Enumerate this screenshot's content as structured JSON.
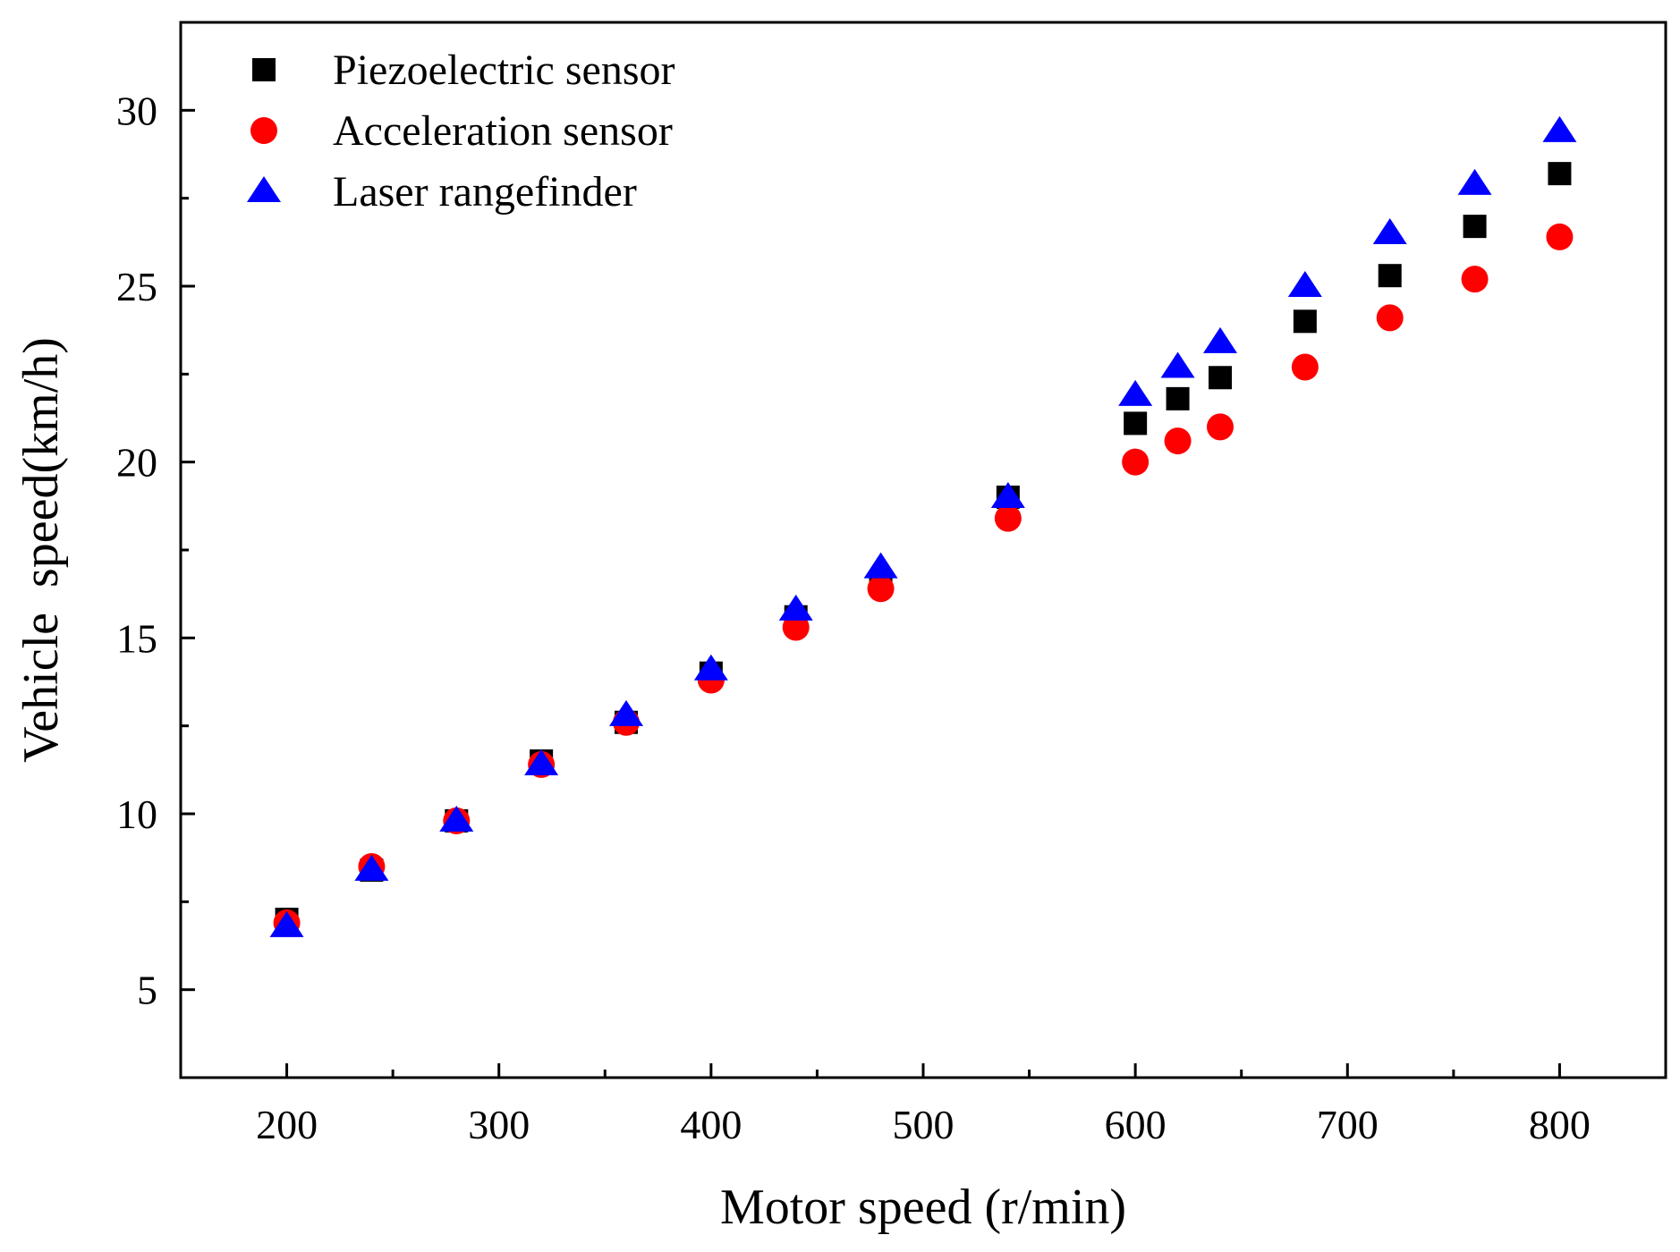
{
  "chart_data": {
    "type": "scatter",
    "title": "",
    "xlabel": "Motor speed (r/min)",
    "ylabel": "Vehicle  speed(km/h)",
    "xlim": [
      150,
      850
    ],
    "ylim": [
      2.5,
      32.5
    ],
    "xticks": [
      200,
      300,
      400,
      500,
      600,
      700,
      800
    ],
    "yticks": [
      5,
      10,
      15,
      20,
      25,
      30
    ],
    "grid": false,
    "legend_position": "top-left",
    "series": [
      {
        "name": "Piezoelectric sensor",
        "marker": "square",
        "color": "#000000",
        "x": [
          200,
          240,
          280,
          320,
          360,
          400,
          440,
          480,
          540,
          600,
          620,
          640,
          680,
          720,
          760,
          800
        ],
        "y": [
          7.0,
          8.4,
          9.8,
          11.5,
          12.6,
          14.0,
          15.6,
          16.6,
          19.0,
          21.1,
          21.8,
          22.4,
          24.0,
          25.3,
          26.7,
          28.2
        ]
      },
      {
        "name": "Acceleration sensor",
        "marker": "circle",
        "color": "#ff0000",
        "x": [
          200,
          240,
          280,
          320,
          360,
          400,
          440,
          480,
          540,
          600,
          620,
          640,
          680,
          720,
          760,
          800
        ],
        "y": [
          6.9,
          8.5,
          9.8,
          11.4,
          12.6,
          13.8,
          15.3,
          16.4,
          18.4,
          20.0,
          20.6,
          21.0,
          22.7,
          24.1,
          25.2,
          26.4
        ]
      },
      {
        "name": "Laser rangefinder",
        "marker": "triangle",
        "color": "#0000ff",
        "x": [
          200,
          240,
          280,
          320,
          360,
          400,
          440,
          480,
          540,
          600,
          620,
          640,
          680,
          720,
          760,
          800
        ],
        "y": [
          6.8,
          8.4,
          9.8,
          11.4,
          12.8,
          14.1,
          15.8,
          17.0,
          19.0,
          21.9,
          22.7,
          23.4,
          25.0,
          26.5,
          27.9,
          29.4
        ]
      }
    ]
  }
}
